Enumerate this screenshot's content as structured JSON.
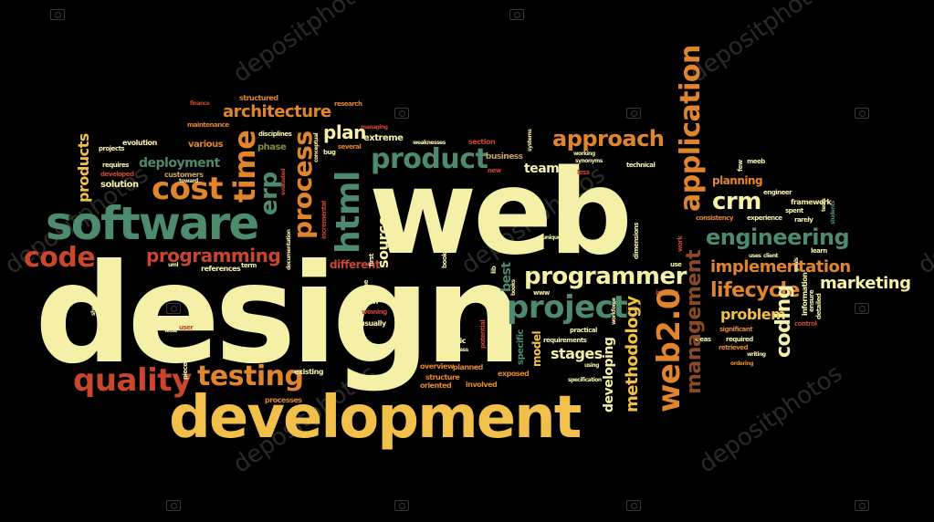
{
  "palette": {
    "background": "#000000",
    "cream": "#F4F0A8",
    "yellow": "#F0C04A",
    "orange": "#E0852E",
    "red": "#C8452E",
    "green": "#4E8A6C",
    "olive": "#8A8A3A",
    "brown": "#8B4A26",
    "tan": "#C9A46A"
  },
  "watermark": {
    "text": "depositphotos",
    "icon": "camera-icon"
  },
  "words": {
    "web": "web",
    "design": "design",
    "development": "development",
    "software": "software",
    "code": "code",
    "quality": "quality",
    "testing": "testing",
    "cost": "cost",
    "time": "time",
    "erp": "erp",
    "process": "process",
    "html": "html",
    "product": "product",
    "approach": "approach",
    "application": "application",
    "crm": "crm",
    "engineering": "engineering",
    "implementation": "implementation",
    "lifecycle": "lifecycle",
    "marketing": "marketing",
    "programmer": "programmer",
    "project": "project",
    "web20": "web2.0",
    "management": "management",
    "methodology": "methodology",
    "developing": "developing",
    "coding": "coding",
    "problem": "problem",
    "programming": "programming",
    "architecture": "architecture",
    "plan": "plan",
    "deployment": "deployment",
    "products": "products",
    "team": "team",
    "stages": "stages",
    "model": "model",
    "source": "source",
    "best": "best",
    "planning": "planning",
    "different": "different",
    "references": "references",
    "solution": "solution",
    "customers": "customers",
    "evolution": "evolution",
    "various": "various",
    "phase": "phase",
    "structured": "structured",
    "research": "research",
    "extreme": "extreme",
    "business": "business",
    "section": "section",
    "technical": "technical",
    "framework": "framework",
    "experience": "experience",
    "consistency": "consistency",
    "usually": "usually",
    "staff": "staff",
    "topic": "topic",
    "specific": "specific",
    "planned": "planned",
    "overview": "overview",
    "structure": "structure",
    "oriented": "oriented",
    "involved": "involved",
    "exposed": "exposed",
    "existing": "existing",
    "processes": "processes",
    "requirements": "requirements",
    "practical": "practical",
    "ideas": "ideas",
    "required": "required",
    "retrieved": "retrieved",
    "significant": "significant",
    "information": "information",
    "ensure": "ensure",
    "detailed": "detailed",
    "control": "control",
    "spent": "spent",
    "rarely": "rarely",
    "learn": "learn",
    "engineer": "engineer",
    "meeb": "meeb",
    "maintenance": "maintenance",
    "finance": "finance",
    "disciplines": "disciplines",
    "managing": "managing",
    "weaknesses": "weaknesses",
    "several": "several",
    "bug": "bug",
    "projects": "projects",
    "requires": "requires",
    "developed": "developed",
    "toward": "toward",
    "user": "user",
    "wide": "wide",
    "uml": "uml",
    "term": "term",
    "piece": "piece",
    "winning": "winning",
    "success": "success",
    "new": "new",
    "less": "less",
    "working": "working",
    "synonyms": "synonyms",
    "unique": "unique",
    "dimensions": "dimensions",
    "include": "include",
    "workforce": "workforce",
    "use": "use",
    "www": "www",
    "uses": "uses",
    "client": "client",
    "using": "using",
    "specification": "specification",
    "writing": "writing",
    "book": "book",
    "lib": "lib",
    "reading": "reading",
    "potential": "potential",
    "one": "one",
    "first": "first",
    "incremental": "incremental",
    "conceptual": "conceptual",
    "evaluated": "evaluated",
    "documentation": "documentation",
    "systems": "systems",
    "work": "work",
    "few": "few",
    "tests": "tests",
    "goals": "goals",
    "students": "students",
    "sheer": "sheer",
    "books": "books",
    "ordering": "ordering"
  }
}
